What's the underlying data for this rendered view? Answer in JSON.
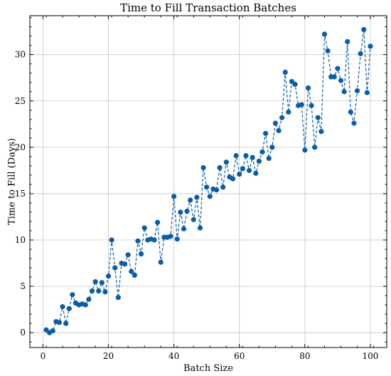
{
  "chart_data": {
    "type": "line",
    "title": "Time to Fill Transaction Batches",
    "xlabel": "Batch Size",
    "ylabel": "Time to Fill (Days)",
    "xlim": [
      -4,
      105
    ],
    "ylim": [
      -1.6,
      34.2
    ],
    "xticks": [
      0,
      20,
      40,
      60,
      80,
      100
    ],
    "yticks": [
      0,
      5,
      10,
      15,
      20,
      25,
      30
    ],
    "grid": true,
    "line_style": "dashed",
    "marker": "circle",
    "color": "#0C5DA5",
    "series": [
      {
        "x": [
          1,
          2,
          3,
          4,
          5,
          6,
          7,
          8,
          9,
          10,
          11,
          12,
          13,
          14,
          15,
          16,
          17,
          18,
          19,
          20,
          21,
          22,
          23,
          24,
          25,
          26,
          27,
          28,
          29,
          30,
          31,
          32,
          33,
          34,
          35,
          36,
          37,
          38,
          39,
          40,
          41,
          42,
          43,
          44,
          45,
          46,
          47,
          48,
          49,
          50,
          51,
          52,
          53,
          54,
          55,
          56,
          57,
          58,
          59,
          60,
          61,
          62,
          63,
          64,
          65,
          66,
          67,
          68,
          69,
          70,
          71,
          72,
          73,
          74,
          75,
          76,
          77,
          78,
          79,
          80,
          81,
          82,
          83,
          84,
          85,
          86,
          87,
          88,
          89,
          90,
          91,
          92,
          93,
          94,
          95,
          96,
          97,
          98,
          99,
          100
        ],
        "y": [
          0.3,
          0.0,
          0.2,
          1.2,
          1.1,
          2.8,
          1.0,
          2.6,
          4.1,
          3.2,
          3.0,
          3.1,
          3.0,
          3.6,
          4.5,
          5.5,
          4.5,
          5.4,
          4.4,
          6.1,
          10.0,
          7.0,
          3.8,
          7.5,
          7.4,
          8.4,
          6.6,
          6.2,
          9.9,
          8.5,
          11.3,
          10.0,
          10.1,
          10.0,
          11.9,
          7.6,
          10.3,
          10.3,
          10.4,
          14.7,
          10.1,
          13.0,
          11.2,
          13.1,
          14.3,
          12.2,
          14.6,
          11.3,
          17.8,
          15.7,
          14.7,
          15.5,
          15.4,
          17.8,
          15.7,
          18.4,
          16.8,
          16.6,
          19.1,
          17.1,
          17.7,
          19.1,
          17.5,
          18.9,
          17.2,
          18.5,
          19.5,
          21.5,
          18.8,
          20.0,
          22.6,
          21.8,
          23.2,
          28.1,
          23.8,
          27.1,
          26.8,
          24.5,
          24.6,
          19.7,
          26.4,
          24.5,
          20.0,
          23.2,
          21.7,
          32.2,
          30.4,
          27.6,
          27.6,
          28.5,
          27.2,
          26.0,
          31.4,
          23.8,
          22.6,
          26.1,
          30.1,
          32.7,
          25.9,
          30.9
        ]
      }
    ]
  }
}
